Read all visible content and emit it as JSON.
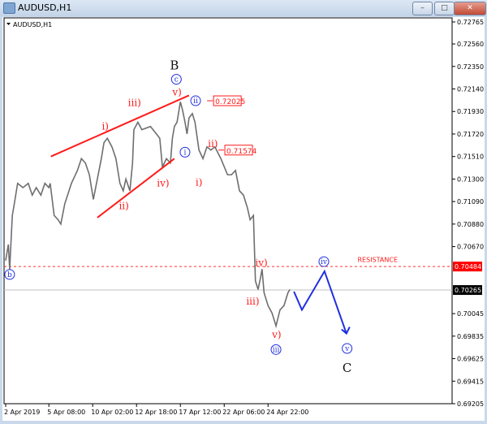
{
  "window": {
    "title": "AUDUSD,H1",
    "minimize_label": "–",
    "maximize_label": "□",
    "close_label": "✕"
  },
  "chart_header": {
    "symbol_label": "AUDUSD,H1"
  },
  "chart_data": {
    "type": "line",
    "title": "AUDUSD,H1",
    "ylim": [
      0.69205,
      0.72765
    ],
    "y_ticks": [
      "0.72765",
      "0.72560",
      "0.72350",
      "0.72140",
      "0.71930",
      "0.71720",
      "0.71510",
      "0.71300",
      "0.71090",
      "0.70880",
      "0.70670",
      "0.70484",
      "0.70265",
      "0.70045",
      "0.69835",
      "0.69625",
      "0.69415",
      "0.69205"
    ],
    "x_ticks": [
      {
        "bar": 0,
        "label": "2 Apr 2019"
      },
      {
        "bar": 65,
        "label": "5 Apr 08:00"
      },
      {
        "bar": 131,
        "label": "10 Apr 02:00"
      },
      {
        "bar": 197,
        "label": "12 Apr 18:00"
      },
      {
        "bar": 263,
        "label": "17 Apr 12:00"
      },
      {
        "bar": 329,
        "label": "22 Apr 06:00"
      },
      {
        "bar": 395,
        "label": "24 Apr 22:00"
      }
    ],
    "series": [
      {
        "color": "#6e6e6e",
        "points": [
          [
            0,
            0.7054
          ],
          [
            4,
            0.7069
          ],
          [
            6,
            0.7046
          ],
          [
            10,
            0.7096
          ],
          [
            13,
            0.7107
          ],
          [
            18,
            0.7126
          ],
          [
            26,
            0.7122
          ],
          [
            34,
            0.7126
          ],
          [
            40,
            0.7115
          ],
          [
            46,
            0.7122
          ],
          [
            53,
            0.7115
          ],
          [
            59,
            0.7126
          ],
          [
            65,
            0.7122
          ],
          [
            67,
            0.7126
          ],
          [
            73,
            0.7096
          ],
          [
            79,
            0.7092
          ],
          [
            83,
            0.7088
          ],
          [
            89,
            0.7107
          ],
          [
            99,
            0.7126
          ],
          [
            108,
            0.7138
          ],
          [
            114,
            0.7149
          ],
          [
            120,
            0.7145
          ],
          [
            126,
            0.7134
          ],
          [
            132,
            0.7111
          ],
          [
            138,
            0.713
          ],
          [
            144,
            0.7149
          ],
          [
            148,
            0.7164
          ],
          [
            153,
            0.7168
          ],
          [
            160,
            0.716
          ],
          [
            166,
            0.7149
          ],
          [
            172,
            0.7126
          ],
          [
            177,
            0.7119
          ],
          [
            181,
            0.713
          ],
          [
            187,
            0.7119
          ],
          [
            191,
            0.7145
          ],
          [
            193,
            0.7176
          ],
          [
            199,
            0.7183
          ],
          [
            205,
            0.7176
          ],
          [
            218,
            0.7179
          ],
          [
            227,
            0.7172
          ],
          [
            232,
            0.7168
          ],
          [
            236,
            0.7141
          ],
          [
            242,
            0.7149
          ],
          [
            248,
            0.7145
          ],
          [
            251,
            0.7168
          ],
          [
            254,
            0.7179
          ],
          [
            258,
            0.7183
          ],
          [
            263,
            0.7202
          ],
          [
            266,
            0.7195
          ],
          [
            270,
            0.7183
          ],
          [
            273,
            0.7172
          ],
          [
            276,
            0.7187
          ],
          [
            281,
            0.7191
          ],
          [
            285,
            0.7183
          ],
          [
            291,
            0.7157
          ],
          [
            297,
            0.7149
          ],
          [
            303,
            0.716
          ],
          [
            309,
            0.7157
          ],
          [
            315,
            0.716
          ],
          [
            324,
            0.7149
          ],
          [
            334,
            0.7134
          ],
          [
            340,
            0.7134
          ],
          [
            346,
            0.7138
          ],
          [
            352,
            0.7119
          ],
          [
            358,
            0.7115
          ],
          [
            364,
            0.7103
          ],
          [
            368,
            0.7092
          ],
          [
            373,
            0.7096
          ],
          [
            376,
            0.7035
          ],
          [
            380,
            0.7027
          ],
          [
            384,
            0.7039
          ],
          [
            386,
            0.7046
          ],
          [
            389,
            0.7024
          ],
          [
            395,
            0.7012
          ],
          [
            401,
            0.7005
          ],
          [
            407,
            0.6993
          ],
          [
            413,
            0.7008
          ],
          [
            419,
            0.7012
          ],
          [
            425,
            0.7024
          ],
          [
            428,
            0.7027
          ]
        ]
      }
    ],
    "projection": {
      "color": "#1f2fe0",
      "points": [
        [
          434,
          0.7025
        ],
        [
          446,
          0.7008
        ],
        [
          480,
          0.7044
        ],
        [
          513,
          0.6986
        ]
      ]
    },
    "trendlines": [
      {
        "color": "#ff1a1a",
        "from": [
          68,
          0.7151
        ],
        "to": [
          276,
          0.7208
        ]
      },
      {
        "color": "#ff1a1a",
        "from": [
          138,
          0.7094
        ],
        "to": [
          254,
          0.7149
        ]
      }
    ],
    "hlines": [
      {
        "price": 0.70484,
        "label": "0.70484",
        "color": "#ff3333",
        "style": "dashed"
      },
      {
        "price": 0.70265,
        "label": "0.70265",
        "color": "#c0c0c0",
        "style": "solid"
      }
    ],
    "annotations": [
      {
        "text": "B",
        "bar": 254,
        "price": 0.7236,
        "style": "major"
      },
      {
        "text": "c",
        "bar": 257,
        "price": 0.7223,
        "style": "circle"
      },
      {
        "text": "v)",
        "bar": 258,
        "price": 0.7211,
        "style": "red"
      },
      {
        "text": "iii)",
        "bar": 194,
        "price": 0.7201,
        "style": "red"
      },
      {
        "text": "i)",
        "bar": 150,
        "price": 0.7179,
        "style": "red"
      },
      {
        "text": "ii)",
        "bar": 178,
        "price": 0.7105,
        "style": "red"
      },
      {
        "text": "iv)",
        "bar": 237,
        "price": 0.7126,
        "style": "red"
      },
      {
        "text": "i",
        "bar": 270,
        "price": 0.7155,
        "style": "circle"
      },
      {
        "text": "ii",
        "bar": 286,
        "price": 0.7203,
        "style": "circle"
      },
      {
        "text": "i)",
        "bar": 291,
        "price": 0.7127,
        "style": "red"
      },
      {
        "text": "ii)",
        "bar": 312,
        "price": 0.7163,
        "style": "red"
      },
      {
        "text": "b",
        "bar": 6,
        "price": 0.7041,
        "style": "circle"
      },
      {
        "text": "iv)",
        "bar": 385,
        "price": 0.7052,
        "style": "red"
      },
      {
        "text": "iii)",
        "bar": 372,
        "price": 0.7016,
        "style": "red"
      },
      {
        "text": "v)",
        "bar": 408,
        "price": 0.6985,
        "style": "red"
      },
      {
        "text": "iii",
        "bar": 407,
        "price": 0.6971,
        "style": "circle"
      },
      {
        "text": "iv",
        "bar": 479,
        "price": 0.7053,
        "style": "circle"
      },
      {
        "text": "v",
        "bar": 514,
        "price": 0.6972,
        "style": "circle"
      },
      {
        "text": "C",
        "bar": 514,
        "price": 0.6954,
        "style": "major"
      },
      {
        "text": "RESISTANCE",
        "bar": 560,
        "price": 0.7055,
        "style": "note"
      }
    ],
    "price_tags": [
      {
        "text": "0.72025",
        "bar": 313,
        "price": 0.7203
      },
      {
        "text": "0.71574",
        "bar": 330,
        "price": 0.7157
      }
    ],
    "grid": false,
    "colors": {
      "red": "#ff1a1a",
      "blue": "#1f2fe0",
      "resistance_tag": "#ff0000",
      "current_tag": "#000000"
    }
  }
}
